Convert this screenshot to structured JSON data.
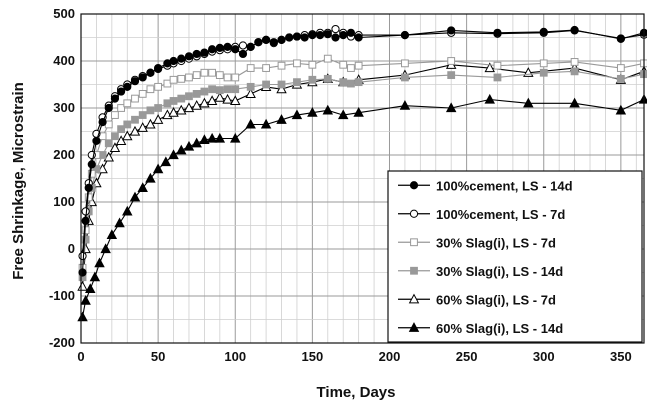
{
  "chart_data": {
    "type": "line",
    "xlabel": "Time, Days",
    "ylabel": "Free Shrinkage, Microstrain",
    "xlim": [
      0,
      365
    ],
    "ylim": [
      -200,
      500
    ],
    "xticks": [
      0,
      50,
      100,
      150,
      200,
      250,
      300,
      350
    ],
    "yticks": [
      -200,
      -100,
      0,
      100,
      200,
      300,
      400,
      500
    ],
    "grid": true,
    "legend_position": "bottom-right",
    "series": [
      {
        "name": "100%cement, LS - 14d",
        "color": "#000000",
        "marker": "circle",
        "fill": "filled",
        "x": [
          1,
          3,
          5,
          7,
          10,
          14,
          18,
          22,
          26,
          30,
          35,
          40,
          45,
          50,
          56,
          60,
          65,
          70,
          75,
          80,
          85,
          90,
          95,
          100,
          105,
          110,
          115,
          120,
          125,
          130,
          135,
          140,
          145,
          150,
          155,
          160,
          165,
          170,
          175,
          180,
          210,
          240,
          270,
          300,
          320,
          350,
          365
        ],
        "y": [
          -50,
          60,
          130,
          180,
          230,
          270,
          300,
          320,
          335,
          345,
          357,
          365,
          375,
          385,
          395,
          400,
          405,
          410,
          415,
          418,
          425,
          428,
          430,
          425,
          415,
          430,
          440,
          445,
          440,
          445,
          450,
          452,
          450,
          455,
          455,
          457,
          450,
          455,
          460,
          450,
          455,
          465,
          460,
          462,
          466,
          447,
          460
        ]
      },
      {
        "name": "100%cement, LS - 7d",
        "color": "#000000",
        "marker": "circle",
        "fill": "open",
        "x": [
          1,
          3,
          5,
          7,
          10,
          14,
          18,
          22,
          26,
          30,
          35,
          40,
          45,
          50,
          56,
          60,
          65,
          70,
          75,
          80,
          85,
          90,
          95,
          100,
          105,
          110,
          115,
          120,
          125,
          130,
          135,
          140,
          145,
          150,
          155,
          160,
          165,
          170,
          175,
          180,
          210,
          240,
          270,
          300,
          320,
          350,
          365
        ],
        "y": [
          -15,
          80,
          140,
          200,
          245,
          280,
          305,
          325,
          340,
          350,
          360,
          368,
          375,
          383,
          390,
          395,
          400,
          405,
          410,
          415,
          420,
          423,
          425,
          430,
          433,
          430,
          440,
          445,
          438,
          445,
          450,
          452,
          455,
          457,
          460,
          460,
          468,
          460,
          452,
          455,
          455,
          460,
          458,
          460,
          465,
          448,
          456
        ]
      },
      {
        "name": "30% Slag(i), LS - 7d",
        "color": "#999999",
        "marker": "square",
        "fill": "open",
        "x": [
          1,
          3,
          5,
          7,
          10,
          14,
          18,
          22,
          26,
          30,
          35,
          40,
          45,
          50,
          56,
          60,
          65,
          70,
          75,
          80,
          85,
          90,
          95,
          100,
          110,
          120,
          130,
          140,
          150,
          160,
          170,
          175,
          180,
          210,
          240,
          270,
          300,
          320,
          350,
          365
        ],
        "y": [
          -40,
          40,
          110,
          160,
          200,
          240,
          265,
          285,
          300,
          310,
          320,
          330,
          340,
          345,
          352,
          360,
          362,
          365,
          370,
          375,
          375,
          370,
          365,
          365,
          385,
          385,
          390,
          395,
          392,
          405,
          392,
          385,
          390,
          395,
          400,
          390,
          395,
          398,
          385,
          395
        ]
      },
      {
        "name": "30% Slag(i), LS - 14d",
        "color": "#999999",
        "marker": "square",
        "fill": "filled",
        "x": [
          1,
          3,
          5,
          7,
          10,
          14,
          18,
          22,
          26,
          30,
          35,
          40,
          45,
          50,
          56,
          60,
          65,
          70,
          75,
          80,
          85,
          90,
          95,
          100,
          110,
          120,
          130,
          140,
          150,
          160,
          170,
          175,
          180,
          210,
          240,
          270,
          300,
          320,
          350,
          365
        ],
        "y": [
          -60,
          20,
          80,
          130,
          170,
          200,
          225,
          240,
          255,
          265,
          275,
          285,
          295,
          300,
          310,
          315,
          320,
          325,
          330,
          335,
          340,
          338,
          340,
          340,
          345,
          350,
          350,
          355,
          360,
          362,
          355,
          352,
          355,
          365,
          370,
          365,
          375,
          378,
          362,
          372
        ]
      },
      {
        "name": "60% Slag(i), LS - 7d",
        "color": "#000000",
        "marker": "triangle",
        "fill": "open",
        "x": [
          1,
          3,
          5,
          7,
          10,
          14,
          18,
          22,
          26,
          30,
          35,
          40,
          45,
          50,
          56,
          60,
          65,
          70,
          75,
          80,
          85,
          90,
          95,
          100,
          110,
          120,
          130,
          140,
          150,
          160,
          170,
          180,
          210,
          240,
          265,
          290,
          320,
          350,
          365
        ],
        "y": [
          -80,
          0,
          60,
          100,
          140,
          170,
          195,
          215,
          230,
          240,
          250,
          258,
          265,
          275,
          285,
          290,
          295,
          300,
          305,
          310,
          315,
          322,
          318,
          315,
          330,
          345,
          340,
          350,
          355,
          362,
          355,
          360,
          370,
          392,
          385,
          375,
          385,
          360,
          378
        ]
      },
      {
        "name": "60% Slag(i), LS - 14d",
        "color": "#000000",
        "marker": "triangle",
        "fill": "filled",
        "x": [
          1,
          3,
          6,
          9,
          12,
          16,
          20,
          25,
          30,
          35,
          40,
          45,
          50,
          55,
          60,
          65,
          70,
          75,
          80,
          85,
          90,
          100,
          110,
          120,
          130,
          140,
          150,
          160,
          170,
          180,
          210,
          240,
          265,
          290,
          320,
          350,
          365
        ],
        "y": [
          -145,
          -110,
          -85,
          -60,
          -30,
          0,
          30,
          55,
          80,
          110,
          130,
          150,
          170,
          185,
          200,
          210,
          218,
          225,
          232,
          235,
          235,
          235,
          265,
          265,
          275,
          285,
          290,
          295,
          285,
          290,
          305,
          300,
          318,
          310,
          310,
          295,
          318
        ]
      }
    ]
  }
}
